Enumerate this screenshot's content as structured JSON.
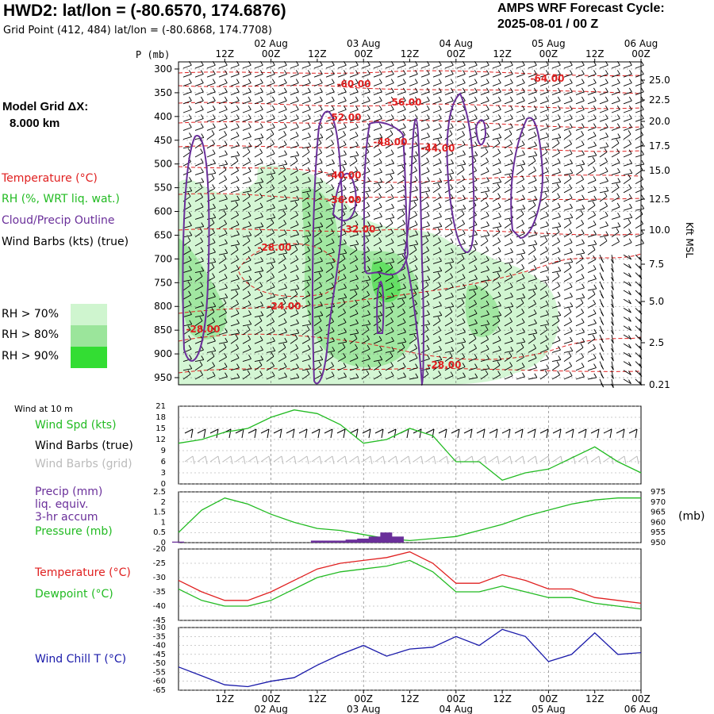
{
  "header": {
    "title": "HWD2:  lat/lon = (-80.6570, 174.6876)",
    "subtitle": "Grid Point (412, 484) lat/lon = (-80.6868, 174.7708)",
    "cycle_line1": "AMPS WRF Forecast Cycle:",
    "cycle_line2": "2025-08-01 / 00  Z"
  },
  "model": {
    "label": "Model Grid ΔX:",
    "value": "8.000 km"
  },
  "legend": {
    "temperature": "Temperature (°C)",
    "rh": "RH (%, WRT liq. wat.)",
    "cloud": "Cloud/Precip Outline",
    "wind": "Wind Barbs (kts) (true)",
    "rh70": "RH > 70%",
    "rh80": "RH > 80%",
    "rh90": "RH > 90%",
    "colors": {
      "temperature": "#e02020",
      "rh": "#22bb22",
      "cloud": "#6a2f9a",
      "wind": "#000000",
      "rh70": "#cff5cf",
      "rh80": "#9be59b",
      "rh90": "#33dd33"
    }
  },
  "time_axis": {
    "top_ticks": [
      "12Z",
      "00Z",
      "12Z",
      "00Z",
      "12Z",
      "00Z",
      "12Z",
      "00Z",
      "12Z",
      "00Z"
    ],
    "top_dates": [
      "02 Aug",
      "03 Aug",
      "04 Aug",
      "05 Aug",
      "06 Aug"
    ],
    "bottom_ticks": [
      "12Z",
      "00Z",
      "12Z",
      "00Z",
      "12Z",
      "00Z",
      "12Z",
      "00Z",
      "12Z",
      "00Z"
    ],
    "bottom_dates": [
      "02 Aug",
      "03 Aug",
      "04 Aug",
      "05 Aug",
      "06 Aug"
    ]
  },
  "upper_panel": {
    "left_axis_title": "P (mb)",
    "pressure_levels": [
      "300",
      "350",
      "400",
      "450",
      "500",
      "550",
      "600",
      "650",
      "700",
      "750",
      "800",
      "850",
      "900",
      "950"
    ],
    "height_ticks": [
      "25.0",
      "22.5",
      "20.0",
      "17.5",
      "15.0",
      "12.5",
      "10.0",
      "7.5",
      "5.0",
      "2.5",
      "0.21"
    ],
    "right_axis_title": "Kft MSL",
    "contour_labels": [
      "-64.00",
      "-60.00",
      "-56.00",
      "-52.00",
      "-48.00",
      "-44.00",
      "-40.00",
      "-36.00",
      "-32.00",
      "-28.00",
      "-24.00",
      "-28.00",
      "-28.00"
    ]
  },
  "wind_panel": {
    "header": "Wind at 10 m",
    "label_speed": "Wind Spd (kts)",
    "label_barbs_true": "Wind Barbs (true)",
    "label_barbs_grid": "Wind Barbs (grid)",
    "y_ticks": [
      "21",
      "18",
      "15",
      "12",
      "9",
      "6",
      "3",
      "0"
    ]
  },
  "precip_panel": {
    "label_precip": "Precip (mm)",
    "label_liq": "liq. equiv.",
    "label_accum": "3-hr accum",
    "label_pressure": "Pressure (mb)",
    "y_ticks_left": [
      "2.5",
      "2",
      "1.5",
      "1",
      "0.5",
      "0"
    ],
    "y_ticks_right": [
      "975",
      "970",
      "965",
      "960",
      "955",
      "950"
    ],
    "right_unit": "(mb)"
  },
  "temp_panel": {
    "label_temp": "Temperature (°C)",
    "label_dew": "Dewpoint (°C)",
    "y_ticks": [
      "-20",
      "-25",
      "-30",
      "-35",
      "-40",
      "-45"
    ]
  },
  "chill_panel": {
    "label": "Wind Chill T (°C)",
    "y_ticks": [
      "-30",
      "-35",
      "-40",
      "-45",
      "-50",
      "-55",
      "-60",
      "-65"
    ]
  },
  "chart_data": [
    {
      "type": "line",
      "title": "Wind at 10 m",
      "ylabel": "Wind Spd (kts)",
      "ylim": [
        0,
        21
      ],
      "x_hours": [
        0,
        6,
        12,
        18,
        24,
        30,
        36,
        42,
        48,
        54,
        60,
        66,
        72,
        78,
        84,
        90,
        96,
        102,
        108,
        114,
        120
      ],
      "series": [
        {
          "name": "Wind Spd (kts)",
          "color": "#22bb22",
          "values": [
            11,
            12,
            14,
            15,
            18,
            20,
            19,
            16,
            11,
            12,
            15,
            13,
            6,
            6,
            1,
            3,
            4,
            7,
            10,
            6,
            3
          ]
        }
      ]
    },
    {
      "type": "line",
      "title": "Precip / Pressure",
      "ylim": [
        0,
        2.5
      ],
      "y2lim": [
        950,
        975
      ],
      "x_hours": [
        0,
        6,
        12,
        18,
        24,
        30,
        36,
        42,
        48,
        54,
        60,
        66,
        72,
        78,
        84,
        90,
        96,
        102,
        108,
        114,
        120
      ],
      "series": [
        {
          "name": "Pressure (mb)",
          "color": "#22bb22",
          "axis": "right",
          "values": [
            955,
            966,
            972,
            969,
            964,
            960,
            957,
            956,
            954,
            952,
            951,
            952,
            953,
            956,
            959,
            963,
            966,
            969,
            971,
            972,
            972
          ]
        },
        {
          "name": "Precip (mm)",
          "color": "#6a2f9a",
          "type": "bar",
          "x_hours": [
            0,
            36,
            39,
            42,
            45,
            48,
            51,
            54,
            57
          ],
          "values": [
            0.05,
            0.1,
            0.1,
            0.1,
            0.15,
            0.2,
            0.3,
            0.5,
            0.3
          ]
        }
      ]
    },
    {
      "type": "line",
      "title": "Temperature / Dewpoint",
      "ylim": [
        -45,
        -20
      ],
      "x_hours": [
        0,
        6,
        12,
        18,
        24,
        30,
        36,
        42,
        48,
        54,
        60,
        66,
        72,
        78,
        84,
        90,
        96,
        102,
        108,
        114,
        120
      ],
      "series": [
        {
          "name": "Temperature (°C)",
          "color": "#e02020",
          "values": [
            -31,
            -35,
            -38,
            -38,
            -35,
            -31,
            -27,
            -25,
            -24,
            -23,
            -21,
            -25,
            -32,
            -32,
            -29,
            -31,
            -34,
            -34,
            -37,
            -38,
            -39
          ]
        },
        {
          "name": "Dewpoint (°C)",
          "color": "#22bb22",
          "values": [
            -34,
            -38,
            -40,
            -40,
            -38,
            -34,
            -30,
            -28,
            -27,
            -26,
            -24,
            -28,
            -35,
            -35,
            -33,
            -35,
            -37,
            -37,
            -39,
            -40,
            -41
          ]
        }
      ]
    },
    {
      "type": "line",
      "title": "Wind Chill",
      "ylim": [
        -65,
        -30
      ],
      "x_hours": [
        0,
        6,
        12,
        18,
        24,
        30,
        36,
        42,
        48,
        54,
        60,
        66,
        72,
        78,
        84,
        90,
        96,
        102,
        108,
        114,
        120
      ],
      "series": [
        {
          "name": "Wind Chill T (°C)",
          "color": "#1a1aaa",
          "values": [
            -52,
            -57,
            -62,
            -63,
            -60,
            -58,
            -51,
            -45,
            -40,
            -46,
            -42,
            -41,
            -35,
            -40,
            -31,
            -35,
            -49,
            -45,
            -33,
            -45,
            -44
          ]
        }
      ]
    }
  ]
}
